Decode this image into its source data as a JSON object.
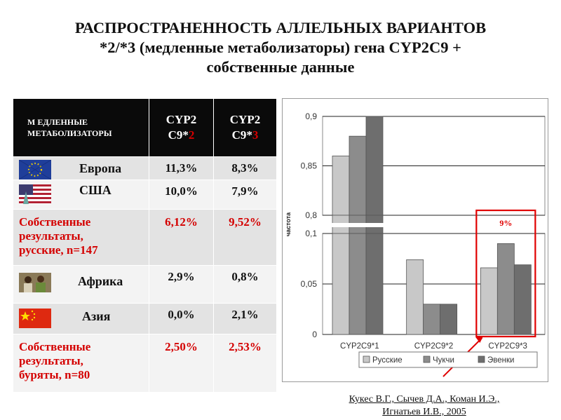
{
  "title": {
    "line1": "РАСПРОСТРАНЕННОСТЬ АЛЛЕЛЬНЫХ ВАРИАНТОВ",
    "line2": "*2/*3 (медленные метаболизаторы)  гена CYP2C9 +",
    "line3": "собственные данные"
  },
  "table": {
    "header": {
      "col0_line1": "М ЕДЛЕННЫЕ",
      "col0_line2": "МЕТАБОЛИЗАТОРЫ",
      "col1_line1": "CYP2",
      "col1_line2a": "C9*",
      "col1_line2b": "2",
      "col2_line1": "CYP2",
      "col2_line2a": "C9*",
      "col2_line2b": "3"
    },
    "rows": [
      {
        "name": "Европа",
        "v2": "11,3%",
        "v3": "8,3%"
      },
      {
        "name": "США",
        "v2": "10,0%",
        "v3": "7,9%"
      },
      {
        "line1": "Собственные",
        "line2": "результаты,",
        "line3": "русские, n=147",
        "v2": "6,12%",
        "v3": "9,52%"
      },
      {
        "name": "Африка",
        "v2": "2,9%",
        "v3": "0,8%"
      },
      {
        "name": "Азия",
        "v2": "0,0%",
        "v3": "2,1%"
      },
      {
        "line1": "Собственные",
        "line2": "результаты,",
        "line3": "буряты, n=80",
        "v2": "2,50%",
        "v3": "2,53%"
      }
    ]
  },
  "colors": {
    "accent_red": "#d40000",
    "series": [
      "#c8c8c8",
      "#8c8c8c",
      "#6e6e6e"
    ]
  },
  "chart_data": {
    "type": "bar",
    "categories": [
      "CYP2C9*1",
      "CYP2C9*2",
      "CYP2C9*3"
    ],
    "series": [
      {
        "name": "Русские",
        "values": [
          0.86,
          0.074,
          0.066
        ]
      },
      {
        "name": "Чукчи",
        "values": [
          0.88,
          0.03,
          0.09
        ]
      },
      {
        "name": "Эвенки",
        "values": [
          0.9,
          0.03,
          0.069
        ]
      }
    ],
    "ylabel": "частота",
    "axis_break": {
      "upper_range": [
        0.8,
        0.9
      ],
      "upper_ticks": [
        "0,8",
        "0,85",
        "0,9"
      ],
      "lower_range": [
        0,
        0.1
      ],
      "lower_ticks": [
        "0",
        "0,05",
        "0,1"
      ]
    },
    "grid": true,
    "legend": "bottom",
    "annotation": "9%"
  },
  "credit": {
    "line1": "Кукес В.Г., Сычев Д.А., Коман И.Э.,",
    "line2": "Игнатьев И.В., 2005"
  }
}
